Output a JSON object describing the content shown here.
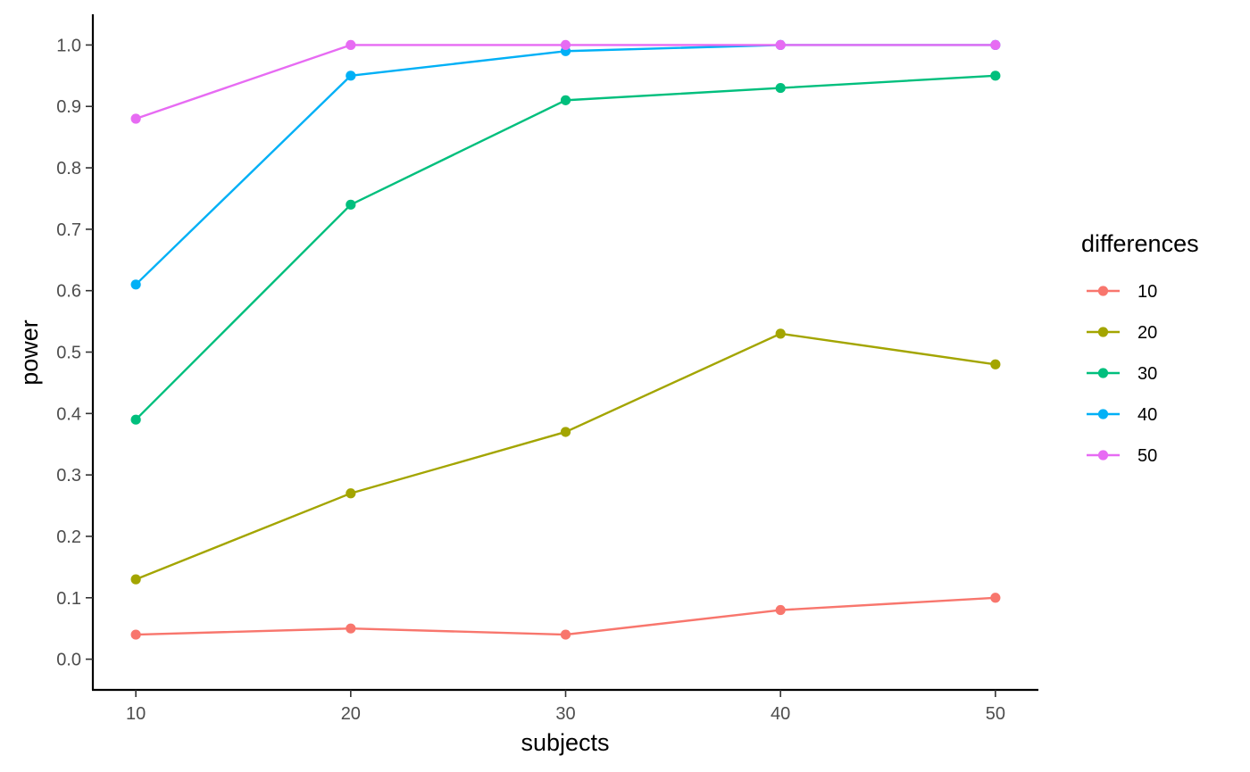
{
  "chart_data": {
    "type": "line",
    "xlabel": "subjects",
    "ylabel": "power",
    "x": [
      10,
      20,
      30,
      40,
      50
    ],
    "xticks": [
      "10",
      "20",
      "30",
      "40",
      "50"
    ],
    "yticks": [
      "0.0",
      "0.1",
      "0.2",
      "0.3",
      "0.4",
      "0.5",
      "0.6",
      "0.7",
      "0.8",
      "0.9",
      "1.0"
    ],
    "xlim": [
      8,
      52
    ],
    "ylim": [
      -0.05,
      1.05
    ],
    "grid": false,
    "legend": {
      "title": "differences",
      "position": "right"
    },
    "series": [
      {
        "name": "10",
        "color": "#F8766D",
        "values": [
          0.04,
          0.05,
          0.04,
          0.08,
          0.1
        ]
      },
      {
        "name": "20",
        "color": "#A3A500",
        "values": [
          0.13,
          0.27,
          0.37,
          0.53,
          0.48
        ]
      },
      {
        "name": "30",
        "color": "#00BF7D",
        "values": [
          0.39,
          0.74,
          0.91,
          0.93,
          0.95
        ]
      },
      {
        "name": "40",
        "color": "#00B0F6",
        "values": [
          0.61,
          0.95,
          0.99,
          1.0,
          1.0
        ]
      },
      {
        "name": "50",
        "color": "#E76BF3",
        "values": [
          0.88,
          1.0,
          1.0,
          1.0,
          1.0
        ]
      }
    ]
  }
}
